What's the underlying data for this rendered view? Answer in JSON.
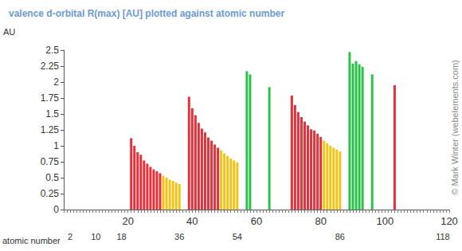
{
  "chart_data": {
    "type": "bar",
    "title": "valence d-orbital R(max) [AU] plotted against atomic number",
    "xlabel": "atomic number",
    "ylabel": "AU",
    "annotations": [
      "© Mark Winter (webelements.com)"
    ],
    "x": [
      21,
      22,
      23,
      24,
      25,
      26,
      27,
      28,
      29,
      30,
      31,
      32,
      33,
      34,
      35,
      36,
      39,
      40,
      41,
      42,
      43,
      44,
      45,
      46,
      47,
      48,
      49,
      50,
      51,
      52,
      53,
      54,
      57,
      58,
      64,
      71,
      72,
      73,
      74,
      75,
      76,
      77,
      78,
      79,
      80,
      81,
      82,
      83,
      84,
      85,
      86,
      89,
      90,
      91,
      92,
      93,
      96,
      103
    ],
    "values": [
      1.12,
      1.0,
      0.9,
      0.86,
      0.77,
      0.72,
      0.67,
      0.63,
      0.6,
      0.57,
      0.53,
      0.5,
      0.47,
      0.45,
      0.42,
      0.4,
      1.77,
      1.59,
      1.48,
      1.36,
      1.27,
      1.21,
      1.13,
      1.08,
      1.02,
      0.97,
      0.93,
      0.88,
      0.84,
      0.8,
      0.77,
      0.74,
      2.17,
      2.12,
      1.92,
      1.79,
      1.64,
      1.53,
      1.45,
      1.38,
      1.32,
      1.26,
      1.24,
      1.19,
      1.14,
      1.08,
      1.04,
      1.0,
      0.97,
      0.94,
      0.91,
      2.47,
      2.29,
      2.33,
      2.28,
      2.24,
      2.12,
      1.95
    ],
    "colors": [
      "#e8303a",
      "#e8303a",
      "#e8303a",
      "#e8303a",
      "#e8303a",
      "#e8303a",
      "#e8303a",
      "#e8303a",
      "#e8303a",
      "#e8303a",
      "#f2c417",
      "#f2c417",
      "#f2c417",
      "#f2c417",
      "#f2c417",
      "#f2c417",
      "#e8303a",
      "#e8303a",
      "#e8303a",
      "#e8303a",
      "#e8303a",
      "#e8303a",
      "#e8303a",
      "#e8303a",
      "#e8303a",
      "#e8303a",
      "#f2c417",
      "#f2c417",
      "#f2c417",
      "#f2c417",
      "#f2c417",
      "#f2c417",
      "#2cc14a",
      "#2cc14a",
      "#2cc14a",
      "#e8303a",
      "#e8303a",
      "#e8303a",
      "#e8303a",
      "#e8303a",
      "#e8303a",
      "#e8303a",
      "#e8303a",
      "#e8303a",
      "#e8303a",
      "#f2c417",
      "#f2c417",
      "#f2c417",
      "#f2c417",
      "#f2c417",
      "#f2c417",
      "#2cc14a",
      "#2cc14a",
      "#2cc14a",
      "#2cc14a",
      "#2cc14a",
      "#2cc14a",
      "#e8303a"
    ],
    "xlim": [
      0,
      120
    ],
    "xticks": [
      20,
      40,
      60,
      80,
      100,
      120
    ],
    "x2lim": [
      0,
      120
    ],
    "x2ticks": [
      2,
      10,
      18,
      36,
      54,
      86,
      118
    ],
    "ylim": [
      0,
      2.5
    ],
    "yticks": [
      0,
      0.25,
      0.5,
      0.75,
      1,
      1.25,
      1.5,
      1.75,
      2,
      2.25,
      2.5
    ],
    "grid": false
  }
}
